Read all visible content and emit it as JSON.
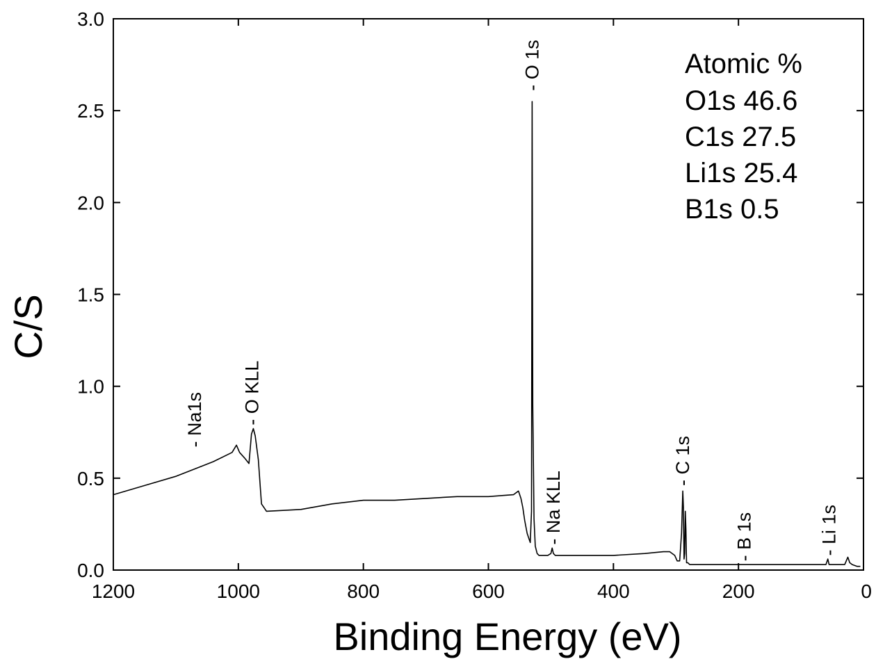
{
  "chart_data": {
    "type": "line",
    "xlabel": "Binding Energy (eV)",
    "ylabel": "C/S",
    "xlim": [
      1200,
      0
    ],
    "ylim": [
      0,
      3.0
    ],
    "x_reversed": true,
    "x_ticks": [
      "1200",
      "1000",
      "800",
      "600",
      "400",
      "200",
      "0"
    ],
    "y_ticks": [
      "0.0",
      "0.5",
      "1.0",
      "1.5",
      "2.0",
      "2.5",
      "3.0"
    ],
    "grid": false,
    "series": [
      {
        "x": [
          1200,
          1150,
          1100,
          1070,
          1040,
          1010,
          1003,
          998,
          990,
          983,
          979,
          976,
          973,
          968,
          963,
          955,
          900,
          850,
          800,
          750,
          700,
          650,
          600,
          560,
          552,
          548,
          545,
          542,
          538,
          535,
          533,
          531,
          530,
          529,
          527,
          525,
          522,
          519,
          515,
          510,
          505,
          500,
          498,
          496,
          493,
          490,
          450,
          400,
          350,
          320,
          310,
          302,
          298,
          294,
          291,
          289,
          288,
          287,
          286,
          285,
          284,
          283,
          281,
          278,
          270,
          250,
          200,
          150,
          100,
          60,
          57,
          55,
          52,
          45,
          30,
          25,
          22,
          18,
          10,
          5
        ],
        "y": [
          0.41,
          0.46,
          0.51,
          0.55,
          0.59,
          0.64,
          0.68,
          0.64,
          0.61,
          0.58,
          0.74,
          0.77,
          0.73,
          0.6,
          0.36,
          0.32,
          0.33,
          0.36,
          0.38,
          0.38,
          0.39,
          0.4,
          0.4,
          0.41,
          0.43,
          0.39,
          0.34,
          0.27,
          0.2,
          0.17,
          0.15,
          0.32,
          2.55,
          0.9,
          0.28,
          0.13,
          0.09,
          0.08,
          0.08,
          0.08,
          0.08,
          0.09,
          0.12,
          0.09,
          0.08,
          0.08,
          0.08,
          0.08,
          0.09,
          0.1,
          0.1,
          0.08,
          0.05,
          0.05,
          0.2,
          0.43,
          0.34,
          0.06,
          0.09,
          0.32,
          0.22,
          0.04,
          0.04,
          0.03,
          0.03,
          0.03,
          0.03,
          0.03,
          0.03,
          0.03,
          0.06,
          0.03,
          0.03,
          0.03,
          0.03,
          0.07,
          0.04,
          0.03,
          0.02,
          0.02
        ]
      }
    ],
    "annotations": [
      {
        "text": "- Na1s",
        "x": 1070,
        "y": 0.66
      },
      {
        "text": "- O KLL",
        "x": 978,
        "y": 0.78
      },
      {
        "text": "- O 1s",
        "x": 530,
        "y": 2.6
      },
      {
        "text": "- Na KLL",
        "x": 496,
        "y": 0.13
      },
      {
        "text": "- C 1s",
        "x": 289,
        "y": 0.45
      },
      {
        "text": "- B 1s",
        "x": 191,
        "y": 0.04
      },
      {
        "text": "- Li 1s",
        "x": 55,
        "y": 0.07
      }
    ],
    "legend_text": [
      "Atomic %",
      "O1s 46.6",
      "C1s 27.5",
      "Li1s 25.4",
      "B1s 0.5"
    ]
  }
}
